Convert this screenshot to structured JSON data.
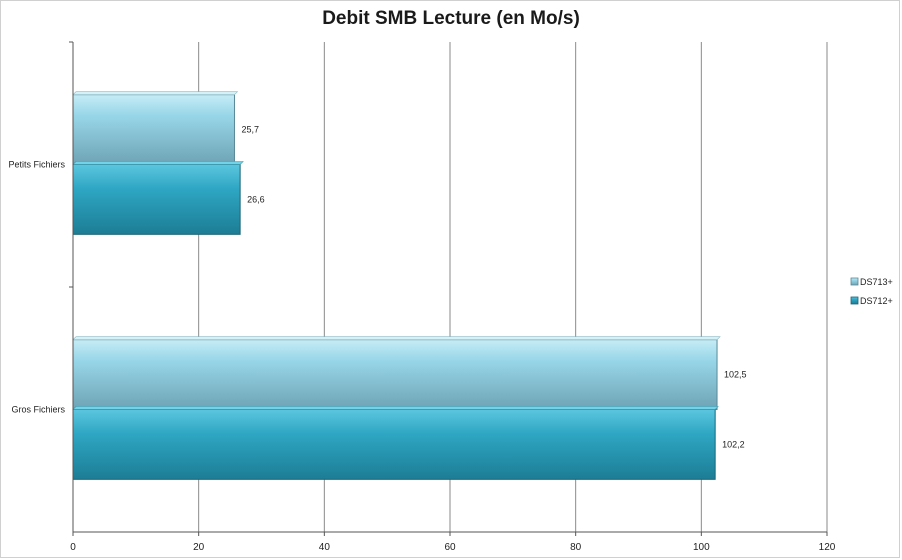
{
  "chart_data": {
    "type": "bar",
    "orientation": "horizontal",
    "title": "Debit SMB Lecture (en Mo/s)",
    "categories": [
      "Petits Fichiers",
      "Gros Fichiers"
    ],
    "series": [
      {
        "name": "DS713+",
        "values": [
          25.7,
          102.5
        ],
        "labels": [
          "25,7",
          "102,5"
        ],
        "color": "#8ecfe0"
      },
      {
        "name": "DS712+",
        "values": [
          26.6,
          102.2
        ],
        "labels": [
          "26,6",
          "102,2"
        ],
        "color": "#31a7c4"
      }
    ],
    "xlim": [
      0,
      120
    ],
    "xticks": [
      0,
      20,
      40,
      60,
      80,
      100,
      120
    ],
    "xlabel": "",
    "ylabel": "",
    "grid": true,
    "legend": "right"
  }
}
